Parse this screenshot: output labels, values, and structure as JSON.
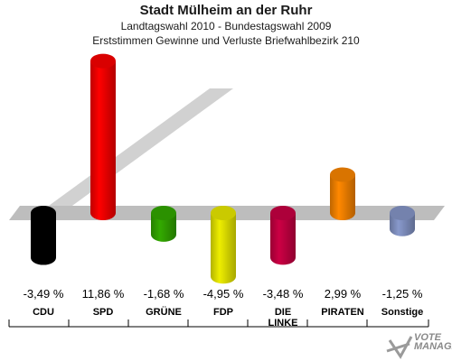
{
  "header": {
    "title": "Stadt Mülheim an der Ruhr",
    "subtitle": "Landtagswahl 2010 - Bundestagswahl 2009",
    "subsubtitle": "Erststimmen Gewinne und Verluste Briefwahlbezirk 210"
  },
  "chart_data": {
    "type": "bar",
    "title": "Stadt Mülheim an der Ruhr",
    "subtitle": "Landtagswahl 2010 - Bundestagswahl 2009 / Erststimmen Gewinne und Verluste Briefwahlbezirk 210",
    "categories": [
      "CDU",
      "SPD",
      "GRÜNE",
      "FDP",
      "DIE LINKE",
      "PIRATEN",
      "Sonstige"
    ],
    "category_lines": [
      [
        "CDU"
      ],
      [
        "SPD"
      ],
      [
        "GRÜNE"
      ],
      [
        "FDP"
      ],
      [
        "DIE",
        "LINKE"
      ],
      [
        "PIRATEN"
      ],
      [
        "Sonstige"
      ]
    ],
    "values": [
      -3.49,
      11.86,
      -1.68,
      -4.95,
      -3.48,
      2.99,
      -1.25
    ],
    "value_labels": [
      "-3,49 %",
      "11,86 %",
      "-1,68 %",
      "-4,95 %",
      "-3,48 %",
      "2,99 %",
      "-1,25 %"
    ],
    "colors": [
      "#000000",
      "#ff0000",
      "#33aa00",
      "#eeee00",
      "#cc0044",
      "#ff8800",
      "#8899cc"
    ],
    "unit": "%",
    "grid": false,
    "legend": "none"
  },
  "logo": {
    "text": "VOTE MANAGER"
  }
}
